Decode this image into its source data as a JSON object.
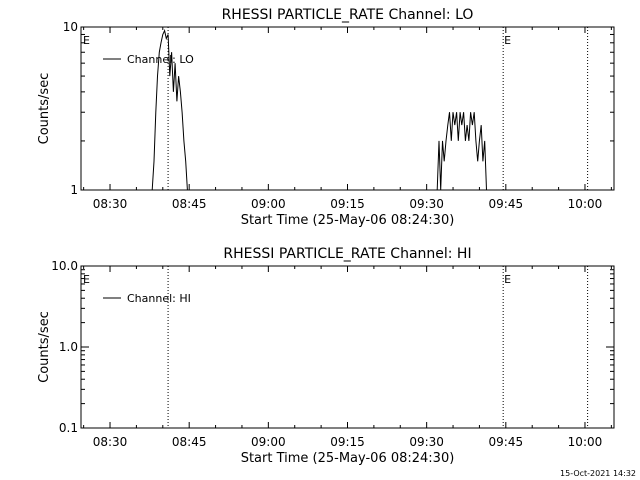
{
  "timestamp": "15-Oct-2021 14:32",
  "chart_data": [
    {
      "type": "line",
      "title": "RHESSI PARTICLE_RATE Channel: LO",
      "xlabel": "Start Time (25-May-06 08:24:30)",
      "ylabel": "Counts/sec",
      "y_scale": "log",
      "ylim": [
        1,
        10
      ],
      "xlim": [
        "08:24:30",
        "10:05:30"
      ],
      "x_ticks": [
        "08:30",
        "08:45",
        "09:00",
        "09:15",
        "09:30",
        "09:45",
        "10:00"
      ],
      "y_ticks": [
        {
          "value": 1,
          "label": "1"
        },
        {
          "value": 10,
          "label": "10"
        }
      ],
      "legend": {
        "entries": [
          "Channel: LO"
        ],
        "placement": "top-left"
      },
      "event_lines": [
        {
          "time": "08:41:00",
          "label": ""
        },
        {
          "time": "09:44:30",
          "label": "E"
        },
        {
          "time": "10:00:30",
          "label": ""
        }
      ],
      "edge_label": "E",
      "series": [
        {
          "name": "Channel: LO",
          "x": [
            "08:38:00",
            "08:38:20",
            "08:38:40",
            "08:39:00",
            "08:39:20",
            "08:39:40",
            "08:40:00",
            "08:40:20",
            "08:40:40",
            "08:41:00",
            "08:41:20",
            "08:41:40",
            "08:42:00",
            "08:42:20",
            "08:42:40",
            "08:43:00",
            "08:43:20",
            "08:43:40",
            "08:44:00",
            "08:44:20",
            "08:44:40",
            "08:45:00",
            "08:45:20",
            "08:45:40",
            "09:32:00",
            "09:32:20",
            "09:32:40",
            "09:33:00",
            "09:33:20",
            "09:33:40",
            "09:34:00",
            "09:34:20",
            "09:34:40",
            "09:35:00",
            "09:35:20",
            "09:35:40",
            "09:36:00",
            "09:36:20",
            "09:36:40",
            "09:37:00",
            "09:37:20",
            "09:37:40",
            "09:38:00",
            "09:38:20",
            "09:38:40",
            "09:39:00",
            "09:39:20",
            "09:39:40",
            "09:40:00",
            "09:40:20",
            "09:40:40",
            "09:41:00",
            "09:41:20",
            "09:41:40",
            "09:42:00",
            "09:42:20",
            "09:42:40",
            "09:43:00"
          ],
          "y": [
            1,
            1.5,
            3,
            5,
            7,
            8,
            9,
            9.5,
            8.5,
            9,
            5,
            7,
            4,
            6,
            3.5,
            5,
            4,
            3,
            2,
            1.5,
            1,
            1,
            1,
            1,
            1,
            2,
            1,
            2,
            1.5,
            2,
            2.5,
            3,
            2,
            3,
            2.5,
            3,
            2,
            3,
            2.5,
            3,
            2,
            2.5,
            2,
            3,
            2.5,
            3,
            2,
            1.5,
            2,
            2.5,
            1.5,
            2,
            1,
            1,
            1,
            1,
            1,
            1
          ]
        }
      ]
    },
    {
      "type": "line",
      "title": "RHESSI PARTICLE_RATE Channel: HI",
      "xlabel": "Start Time (25-May-06 08:24:30)",
      "ylabel": "Counts/sec",
      "y_scale": "log",
      "ylim": [
        0.1,
        10
      ],
      "xlim": [
        "08:24:30",
        "10:05:30"
      ],
      "x_ticks": [
        "08:30",
        "08:45",
        "09:00",
        "09:15",
        "09:30",
        "09:45",
        "10:00"
      ],
      "y_ticks": [
        {
          "value": 0.1,
          "label": "0.1"
        },
        {
          "value": 1,
          "label": "1.0"
        },
        {
          "value": 10,
          "label": "10.0"
        }
      ],
      "legend": {
        "entries": [
          "Channel: HI"
        ],
        "placement": "top-left"
      },
      "event_lines": [
        {
          "time": "08:41:00",
          "label": ""
        },
        {
          "time": "09:44:30",
          "label": "E"
        },
        {
          "time": "10:00:30",
          "label": ""
        }
      ],
      "edge_label": "E",
      "series": [
        {
          "name": "Channel: HI",
          "x": [],
          "y": []
        }
      ]
    }
  ]
}
